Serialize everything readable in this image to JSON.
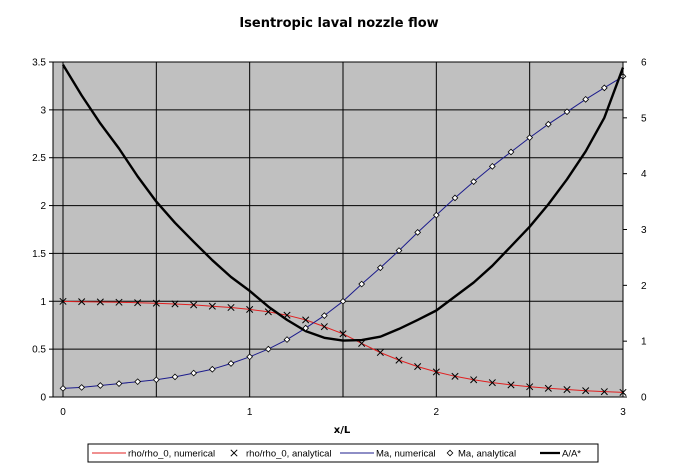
{
  "chart_data": {
    "type": "line",
    "title": "Isentropic laval nozzle flow",
    "xlabel": "x/L",
    "xlim": [
      0,
      3
    ],
    "x_ticks": [
      "0",
      "1",
      "2",
      "3"
    ],
    "ylim": [
      0,
      3.5
    ],
    "y_ticks": [
      "0",
      "0.5",
      "1",
      "1.5",
      "2",
      "2.5",
      "3",
      "3.5"
    ],
    "y2lim": [
      0,
      6
    ],
    "y2_ticks": [
      "0",
      "1",
      "2",
      "3",
      "4",
      "5",
      "6"
    ],
    "grid": true,
    "legend_position": "bottom",
    "colors": {
      "plot_bg": "#c0c0c0",
      "rho": "#e02020",
      "ma": "#1c1c8c",
      "area": "#000000",
      "grid": "#000000"
    },
    "series": [
      {
        "name": "rho/rho_0, numerical",
        "axis": "left",
        "style": "line",
        "color": "#e02020",
        "x": [
          0,
          0.1,
          0.2,
          0.3,
          0.4,
          0.5,
          0.6,
          0.7,
          0.8,
          0.9,
          1.0,
          1.1,
          1.2,
          1.3,
          1.4,
          1.5,
          1.6,
          1.7,
          1.8,
          1.9,
          2.0,
          2.1,
          2.2,
          2.3,
          2.4,
          2.5,
          2.6,
          2.7,
          2.8,
          2.9,
          3.0
        ],
        "y": [
          0.999,
          0.996,
          0.993,
          0.99,
          0.985,
          0.98,
          0.972,
          0.962,
          0.949,
          0.935,
          0.915,
          0.89,
          0.855,
          0.805,
          0.735,
          0.66,
          0.56,
          0.465,
          0.385,
          0.318,
          0.262,
          0.216,
          0.18,
          0.15,
          0.126,
          0.107,
          0.091,
          0.078,
          0.066,
          0.056,
          0.048
        ]
      },
      {
        "name": "rho/rho_0, analytical",
        "axis": "left",
        "style": "x-marker",
        "color": "#000000",
        "x": [
          0,
          0.1,
          0.2,
          0.3,
          0.4,
          0.5,
          0.6,
          0.7,
          0.8,
          0.9,
          1.0,
          1.1,
          1.2,
          1.3,
          1.4,
          1.5,
          1.6,
          1.7,
          1.8,
          1.9,
          2.0,
          2.1,
          2.2,
          2.3,
          2.4,
          2.5,
          2.6,
          2.7,
          2.8,
          2.9,
          3.0
        ],
        "y": [
          0.999,
          0.996,
          0.993,
          0.99,
          0.985,
          0.98,
          0.972,
          0.962,
          0.949,
          0.935,
          0.915,
          0.89,
          0.855,
          0.805,
          0.735,
          0.66,
          0.56,
          0.465,
          0.385,
          0.318,
          0.262,
          0.216,
          0.18,
          0.15,
          0.126,
          0.107,
          0.091,
          0.078,
          0.066,
          0.056,
          0.048
        ]
      },
      {
        "name": "Ma, numerical",
        "axis": "left",
        "style": "line",
        "color": "#1c1c8c",
        "x": [
          0,
          0.1,
          0.2,
          0.3,
          0.4,
          0.5,
          0.6,
          0.7,
          0.8,
          0.9,
          1.0,
          1.1,
          1.2,
          1.3,
          1.4,
          1.5,
          1.6,
          1.7,
          1.8,
          1.9,
          2.0,
          2.1,
          2.2,
          2.3,
          2.4,
          2.5,
          2.6,
          2.7,
          2.8,
          2.9,
          3.0
        ],
        "y": [
          0.09,
          0.1,
          0.12,
          0.14,
          0.16,
          0.18,
          0.21,
          0.25,
          0.29,
          0.35,
          0.42,
          0.5,
          0.6,
          0.72,
          0.85,
          1.0,
          1.18,
          1.35,
          1.53,
          1.72,
          1.9,
          2.08,
          2.25,
          2.41,
          2.56,
          2.71,
          2.85,
          2.98,
          3.11,
          3.23,
          3.35
        ]
      },
      {
        "name": "Ma, analytical",
        "axis": "left",
        "style": "diamond-marker",
        "color": "#000000",
        "x": [
          0,
          0.1,
          0.2,
          0.3,
          0.4,
          0.5,
          0.6,
          0.7,
          0.8,
          0.9,
          1.0,
          1.1,
          1.2,
          1.3,
          1.4,
          1.5,
          1.6,
          1.7,
          1.8,
          1.9,
          2.0,
          2.1,
          2.2,
          2.3,
          2.4,
          2.5,
          2.6,
          2.7,
          2.8,
          2.9,
          3.0
        ],
        "y": [
          0.09,
          0.1,
          0.12,
          0.14,
          0.16,
          0.18,
          0.21,
          0.25,
          0.29,
          0.35,
          0.42,
          0.5,
          0.6,
          0.72,
          0.85,
          1.0,
          1.18,
          1.35,
          1.53,
          1.72,
          1.9,
          2.08,
          2.25,
          2.41,
          2.56,
          2.71,
          2.85,
          2.98,
          3.11,
          3.23,
          3.35
        ]
      },
      {
        "name": "A/A*",
        "axis": "right",
        "style": "thick-line",
        "color": "#000000",
        "x": [
          0,
          0.1,
          0.2,
          0.3,
          0.4,
          0.5,
          0.6,
          0.7,
          0.8,
          0.9,
          1.0,
          1.1,
          1.2,
          1.3,
          1.4,
          1.5,
          1.6,
          1.7,
          1.8,
          1.9,
          2.0,
          2.1,
          2.2,
          2.3,
          2.4,
          2.5,
          2.6,
          2.7,
          2.8,
          2.9,
          3.0
        ],
        "y": [
          5.95,
          5.4,
          4.9,
          4.45,
          3.95,
          3.5,
          3.12,
          2.78,
          2.45,
          2.15,
          1.9,
          1.62,
          1.38,
          1.18,
          1.06,
          1.01,
          1.02,
          1.08,
          1.22,
          1.38,
          1.55,
          1.8,
          2.05,
          2.35,
          2.7,
          3.05,
          3.45,
          3.9,
          4.4,
          5.0,
          5.9
        ]
      }
    ]
  }
}
